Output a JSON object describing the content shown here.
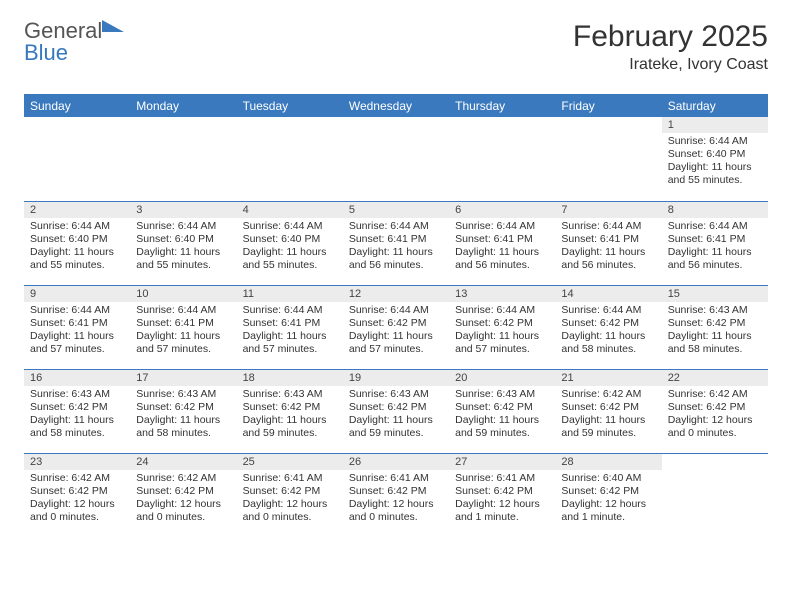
{
  "logo": {
    "word1": "General",
    "word2": "Blue",
    "tri_color": "#3a79bd"
  },
  "title": "February 2025",
  "subtitle": "Irateke, Ivory Coast",
  "colors": {
    "header_bg": "#3a79bd",
    "header_fg": "#ffffff",
    "daynum_bg": "#ececec",
    "rule": "#3a79bd",
    "text": "#333333"
  },
  "day_headers": [
    "Sunday",
    "Monday",
    "Tuesday",
    "Wednesday",
    "Thursday",
    "Friday",
    "Saturday"
  ],
  "weeks": [
    [
      null,
      null,
      null,
      null,
      null,
      null,
      {
        "n": "1",
        "sunrise": "Sunrise: 6:44 AM",
        "sunset": "Sunset: 6:40 PM",
        "daylight": "Daylight: 11 hours and 55 minutes."
      }
    ],
    [
      {
        "n": "2",
        "sunrise": "Sunrise: 6:44 AM",
        "sunset": "Sunset: 6:40 PM",
        "daylight": "Daylight: 11 hours and 55 minutes."
      },
      {
        "n": "3",
        "sunrise": "Sunrise: 6:44 AM",
        "sunset": "Sunset: 6:40 PM",
        "daylight": "Daylight: 11 hours and 55 minutes."
      },
      {
        "n": "4",
        "sunrise": "Sunrise: 6:44 AM",
        "sunset": "Sunset: 6:40 PM",
        "daylight": "Daylight: 11 hours and 55 minutes."
      },
      {
        "n": "5",
        "sunrise": "Sunrise: 6:44 AM",
        "sunset": "Sunset: 6:41 PM",
        "daylight": "Daylight: 11 hours and 56 minutes."
      },
      {
        "n": "6",
        "sunrise": "Sunrise: 6:44 AM",
        "sunset": "Sunset: 6:41 PM",
        "daylight": "Daylight: 11 hours and 56 minutes."
      },
      {
        "n": "7",
        "sunrise": "Sunrise: 6:44 AM",
        "sunset": "Sunset: 6:41 PM",
        "daylight": "Daylight: 11 hours and 56 minutes."
      },
      {
        "n": "8",
        "sunrise": "Sunrise: 6:44 AM",
        "sunset": "Sunset: 6:41 PM",
        "daylight": "Daylight: 11 hours and 56 minutes."
      }
    ],
    [
      {
        "n": "9",
        "sunrise": "Sunrise: 6:44 AM",
        "sunset": "Sunset: 6:41 PM",
        "daylight": "Daylight: 11 hours and 57 minutes."
      },
      {
        "n": "10",
        "sunrise": "Sunrise: 6:44 AM",
        "sunset": "Sunset: 6:41 PM",
        "daylight": "Daylight: 11 hours and 57 minutes."
      },
      {
        "n": "11",
        "sunrise": "Sunrise: 6:44 AM",
        "sunset": "Sunset: 6:41 PM",
        "daylight": "Daylight: 11 hours and 57 minutes."
      },
      {
        "n": "12",
        "sunrise": "Sunrise: 6:44 AM",
        "sunset": "Sunset: 6:42 PM",
        "daylight": "Daylight: 11 hours and 57 minutes."
      },
      {
        "n": "13",
        "sunrise": "Sunrise: 6:44 AM",
        "sunset": "Sunset: 6:42 PM",
        "daylight": "Daylight: 11 hours and 57 minutes."
      },
      {
        "n": "14",
        "sunrise": "Sunrise: 6:44 AM",
        "sunset": "Sunset: 6:42 PM",
        "daylight": "Daylight: 11 hours and 58 minutes."
      },
      {
        "n": "15",
        "sunrise": "Sunrise: 6:43 AM",
        "sunset": "Sunset: 6:42 PM",
        "daylight": "Daylight: 11 hours and 58 minutes."
      }
    ],
    [
      {
        "n": "16",
        "sunrise": "Sunrise: 6:43 AM",
        "sunset": "Sunset: 6:42 PM",
        "daylight": "Daylight: 11 hours and 58 minutes."
      },
      {
        "n": "17",
        "sunrise": "Sunrise: 6:43 AM",
        "sunset": "Sunset: 6:42 PM",
        "daylight": "Daylight: 11 hours and 58 minutes."
      },
      {
        "n": "18",
        "sunrise": "Sunrise: 6:43 AM",
        "sunset": "Sunset: 6:42 PM",
        "daylight": "Daylight: 11 hours and 59 minutes."
      },
      {
        "n": "19",
        "sunrise": "Sunrise: 6:43 AM",
        "sunset": "Sunset: 6:42 PM",
        "daylight": "Daylight: 11 hours and 59 minutes."
      },
      {
        "n": "20",
        "sunrise": "Sunrise: 6:43 AM",
        "sunset": "Sunset: 6:42 PM",
        "daylight": "Daylight: 11 hours and 59 minutes."
      },
      {
        "n": "21",
        "sunrise": "Sunrise: 6:42 AM",
        "sunset": "Sunset: 6:42 PM",
        "daylight": "Daylight: 11 hours and 59 minutes."
      },
      {
        "n": "22",
        "sunrise": "Sunrise: 6:42 AM",
        "sunset": "Sunset: 6:42 PM",
        "daylight": "Daylight: 12 hours and 0 minutes."
      }
    ],
    [
      {
        "n": "23",
        "sunrise": "Sunrise: 6:42 AM",
        "sunset": "Sunset: 6:42 PM",
        "daylight": "Daylight: 12 hours and 0 minutes."
      },
      {
        "n": "24",
        "sunrise": "Sunrise: 6:42 AM",
        "sunset": "Sunset: 6:42 PM",
        "daylight": "Daylight: 12 hours and 0 minutes."
      },
      {
        "n": "25",
        "sunrise": "Sunrise: 6:41 AM",
        "sunset": "Sunset: 6:42 PM",
        "daylight": "Daylight: 12 hours and 0 minutes."
      },
      {
        "n": "26",
        "sunrise": "Sunrise: 6:41 AM",
        "sunset": "Sunset: 6:42 PM",
        "daylight": "Daylight: 12 hours and 0 minutes."
      },
      {
        "n": "27",
        "sunrise": "Sunrise: 6:41 AM",
        "sunset": "Sunset: 6:42 PM",
        "daylight": "Daylight: 12 hours and 1 minute."
      },
      {
        "n": "28",
        "sunrise": "Sunrise: 6:40 AM",
        "sunset": "Sunset: 6:42 PM",
        "daylight": "Daylight: 12 hours and 1 minute."
      },
      null
    ]
  ]
}
